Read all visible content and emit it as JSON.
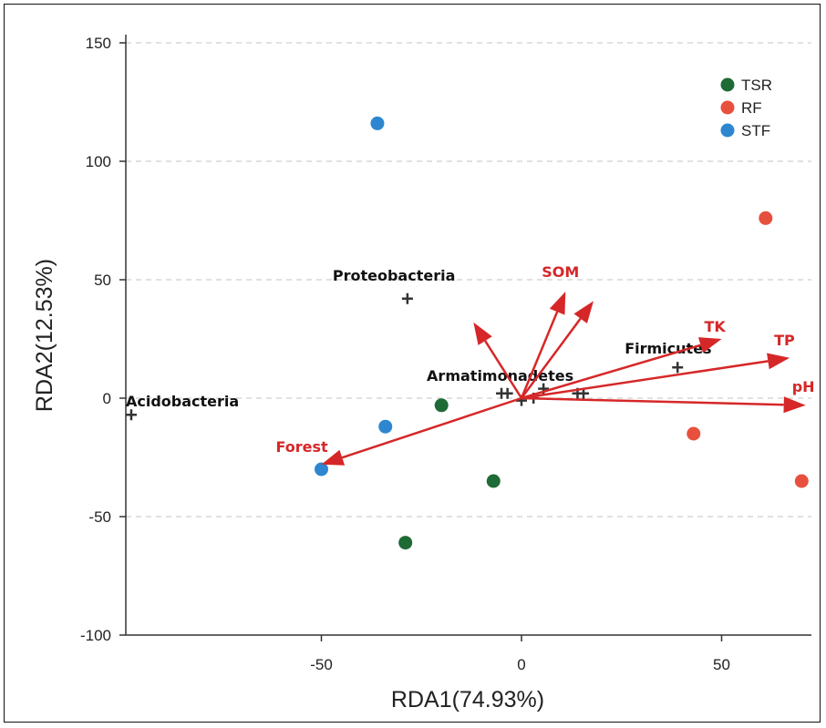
{
  "chart_data": {
    "type": "scatter",
    "xlabel": "RDA1(74.93%)",
    "ylabel": "RDA2(12.53%)",
    "xlim": [
      -99,
      72
    ],
    "ylim": [
      -100,
      150
    ],
    "xticks": [
      -50,
      0,
      50
    ],
    "yticks": [
      150,
      100,
      50,
      0,
      -50,
      -100
    ],
    "grid": "horizontal dashed",
    "legend_position": "top-right",
    "colors": {
      "TSR": "#1e6b35",
      "RF": "#e8503e",
      "STF": "#2e86d0",
      "arrow": "#d62728",
      "taxon": "#333333"
    },
    "series": [
      {
        "name": "TSR",
        "points": [
          [
            -20,
            -3
          ],
          [
            -7,
            -35
          ],
          [
            -29,
            -61
          ]
        ]
      },
      {
        "name": "RF",
        "points": [
          [
            61,
            76
          ],
          [
            43,
            -15
          ],
          [
            70,
            -35
          ]
        ]
      },
      {
        "name": "STF",
        "points": [
          [
            -36,
            116
          ],
          [
            -34,
            -12
          ],
          [
            -50,
            -30
          ]
        ]
      }
    ],
    "species": [
      {
        "label": "Proteobacteria",
        "x": -28.5,
        "y": 42
      },
      {
        "label": "Acidobacteria",
        "x": -97.5,
        "y": -7
      },
      {
        "label": "Firmicutes",
        "x": 39,
        "y": 13
      },
      {
        "label": "Armatimonadetes",
        "x": -5,
        "y": 2
      },
      {
        "label": "",
        "x": -3.5,
        "y": 2
      },
      {
        "label": "",
        "x": 0,
        "y": -1
      },
      {
        "label": "",
        "x": 3,
        "y": 0
      },
      {
        "label": "",
        "x": 5.5,
        "y": 4
      },
      {
        "label": "",
        "x": 14,
        "y": 2
      },
      {
        "label": "",
        "x": 15.5,
        "y": 2
      }
    ],
    "env_vectors": [
      {
        "label": "SOM",
        "x": 11,
        "y": 45
      },
      {
        "label": "",
        "x": 18,
        "y": 41
      },
      {
        "label": "",
        "x": -12,
        "y": 32
      },
      {
        "label": "TK",
        "x": 50,
        "y": 25
      },
      {
        "label": "TP",
        "x": 67,
        "y": 17
      },
      {
        "label": "pH",
        "x": 71,
        "y": -3
      },
      {
        "label": "Forest",
        "x": -50,
        "y": -28
      }
    ]
  }
}
